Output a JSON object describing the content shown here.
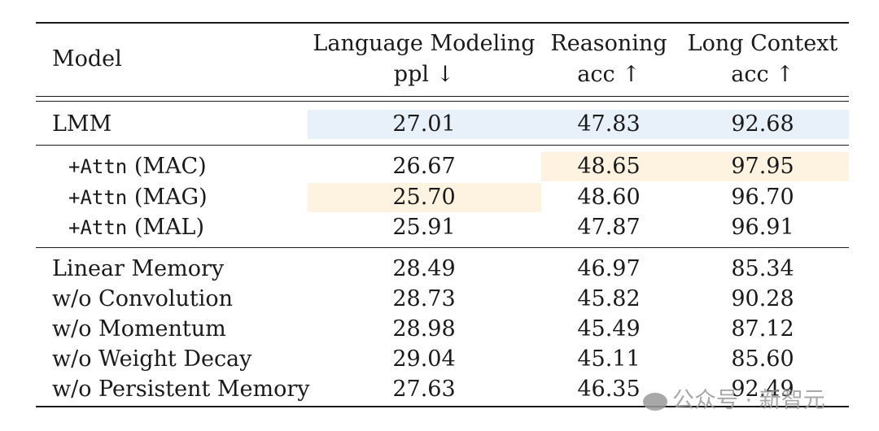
{
  "header": {
    "model": "Model",
    "lm_title": "Language Modeling",
    "lm_metric": "ppl ↓",
    "reason_title": "Reasoning",
    "reason_metric": "acc ↑",
    "lc_title": "Long Context",
    "lc_metric": "acc ↑"
  },
  "rows": [
    {
      "prefix": "",
      "mono": "",
      "name": "LMM",
      "lm": "27.01",
      "reason": "47.83",
      "lc": "92.68"
    },
    {
      "prefix": "",
      "mono": "+Attn",
      "name": " (MAC)",
      "lm": "26.67",
      "reason": "48.65",
      "lc": "97.95"
    },
    {
      "prefix": "",
      "mono": "+Attn",
      "name": " (MAG)",
      "lm": "25.70",
      "reason": "48.60",
      "lc": "96.70"
    },
    {
      "prefix": "",
      "mono": "+Attn",
      "name": " (MAL)",
      "lm": "25.91",
      "reason": "47.87",
      "lc": "96.91"
    },
    {
      "prefix": "",
      "mono": "",
      "name": "Linear Memory",
      "lm": "28.49",
      "reason": "46.97",
      "lc": "85.34"
    },
    {
      "prefix": "",
      "mono": "",
      "name": "w/o Convolution",
      "lm": "28.73",
      "reason": "45.82",
      "lc": "90.28"
    },
    {
      "prefix": "",
      "mono": "",
      "name": "w/o Momentum",
      "lm": "28.98",
      "reason": "45.49",
      "lc": "87.12"
    },
    {
      "prefix": "",
      "mono": "",
      "name": "w/o Weight Decay",
      "lm": "29.04",
      "reason": "45.11",
      "lc": "85.60"
    },
    {
      "prefix": "",
      "mono": "",
      "name": "w/o Persistent Memory",
      "lm": "27.63",
      "reason": "46.35",
      "lc": "92.49"
    }
  ],
  "colors": {
    "baseline_highlight": "#e8f1fa",
    "best_highlight": "#fdf3e0"
  },
  "watermark": {
    "icon": "wechat-icon",
    "text": "公众号 · 新智元"
  }
}
